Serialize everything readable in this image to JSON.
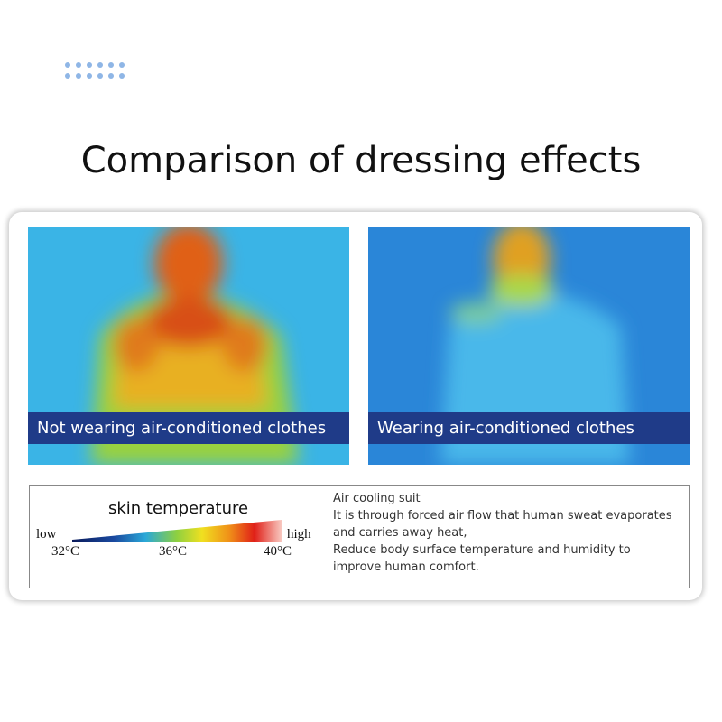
{
  "header": {
    "title": "Comparison of dressing effects"
  },
  "panels": [
    {
      "caption": "Not wearing air-conditioned clothes"
    },
    {
      "caption": "Wearing air-conditioned clothes"
    }
  ],
  "legend": {
    "title": "skin temperature",
    "low": "low",
    "high": "high",
    "ticks": [
      "32°C",
      "36°C",
      "40°C"
    ]
  },
  "description": {
    "heading": "Air cooling suit",
    "paragraphs": [
      "It is through forced air flow that human sweat evaporates and carries away heat,",
      "Reduce body surface temperature and humidity to improve human comfort."
    ]
  }
}
